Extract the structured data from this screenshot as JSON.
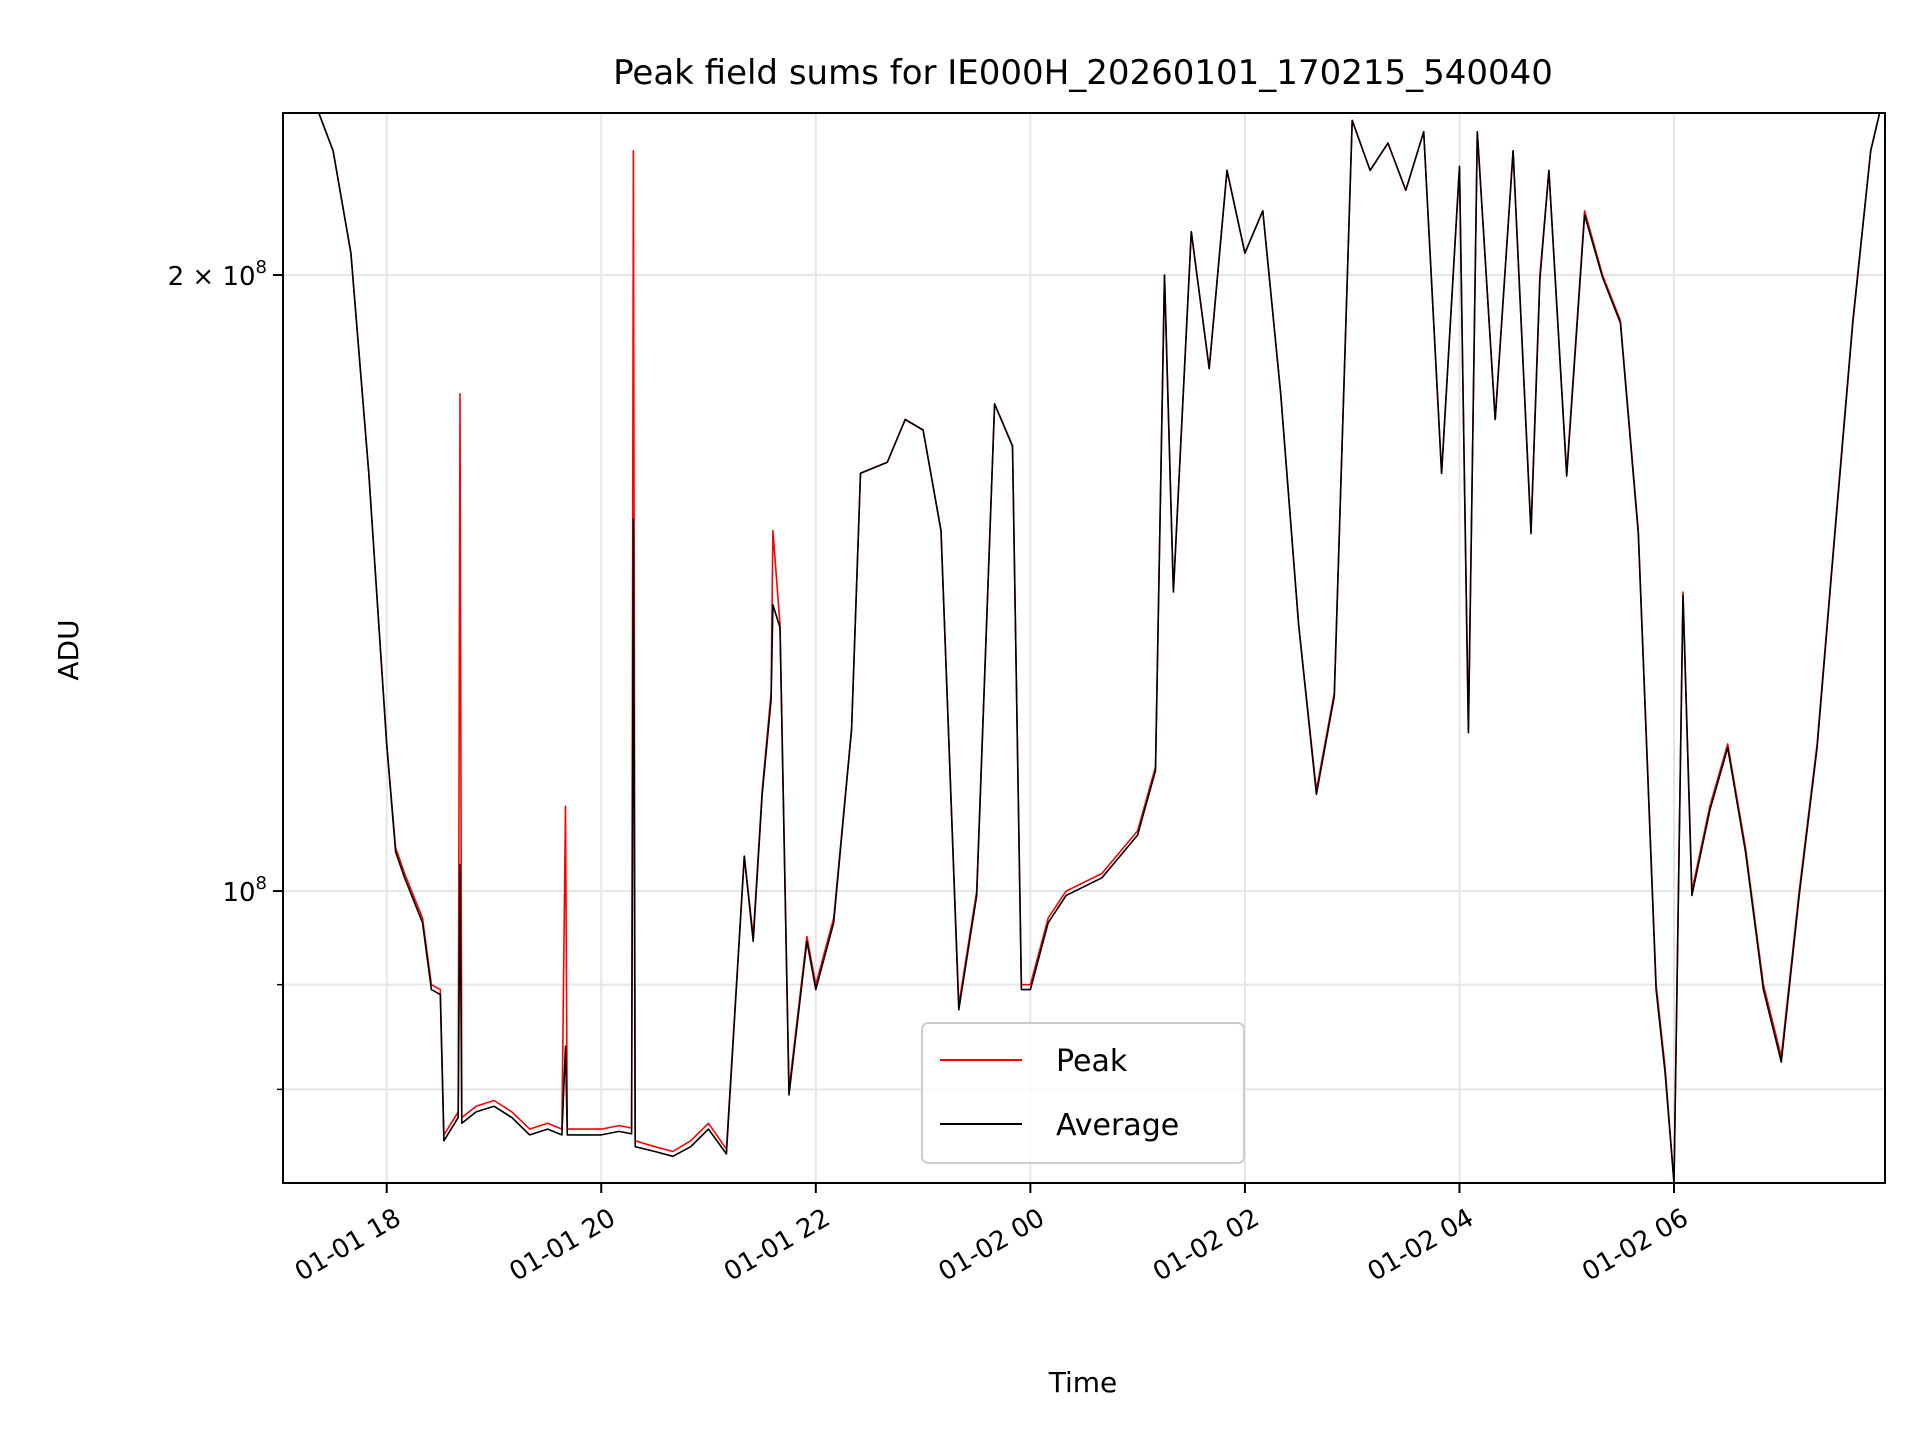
{
  "chart_data": {
    "type": "line",
    "title": "Peak field sums for IE000H_20260101_170215_540040",
    "xlabel": "Time",
    "ylabel": "ADU",
    "xlim": [
      "2026-01-01 17:02",
      "2026-01-02 07:58"
    ],
    "ylim": [
      72000000,
      240000000
    ],
    "yscale": "log",
    "grid": true,
    "legend_position": "lower-center",
    "x_ticks": [
      {
        "value": "2026-01-01 18:00",
        "label": "01-01 18"
      },
      {
        "value": "2026-01-01 20:00",
        "label": "01-01 20"
      },
      {
        "value": "2026-01-01 22:00",
        "label": "01-01 22"
      },
      {
        "value": "2026-01-02 00:00",
        "label": "01-02 00"
      },
      {
        "value": "2026-01-02 02:00",
        "label": "01-02 02"
      },
      {
        "value": "2026-01-02 04:00",
        "label": "01-02 04"
      },
      {
        "value": "2026-01-02 06:00",
        "label": "01-02 06"
      }
    ],
    "y_major_ticks": [
      {
        "value": 100000000,
        "base": "10",
        "exp": "8",
        "coef": ""
      },
      {
        "value": 200000000,
        "base": "10",
        "exp": "8",
        "coef": "2"
      }
    ],
    "y_minor_ticks": [
      80000000,
      90000000
    ],
    "series": [
      {
        "name": "Peak",
        "color": "#ff0000",
        "points": [
          [
            "2026-01-01 17:22",
            240000000
          ],
          [
            "2026-01-01 17:30",
            230000000
          ],
          [
            "2026-01-01 17:40",
            205000000
          ],
          [
            "2026-01-01 17:50",
            160000000
          ],
          [
            "2026-01-01 18:00",
            118000000
          ],
          [
            "2026-01-01 18:05",
            105000000
          ],
          [
            "2026-01-01 18:10",
            102000000
          ],
          [
            "2026-01-01 18:20",
            97000000
          ],
          [
            "2026-01-01 18:25",
            90000000
          ],
          [
            "2026-01-01 18:30",
            89500000
          ],
          [
            "2026-01-01 18:32",
            76000000
          ],
          [
            "2026-01-01 18:40",
            78000000
          ],
          [
            "2026-01-01 18:41",
            175000000
          ],
          [
            "2026-01-01 18:42",
            77500000
          ],
          [
            "2026-01-01 18:50",
            78500000
          ],
          [
            "2026-01-01 19:00",
            79000000
          ],
          [
            "2026-01-01 19:10",
            78000000
          ],
          [
            "2026-01-01 19:20",
            76500000
          ],
          [
            "2026-01-01 19:30",
            77000000
          ],
          [
            "2026-01-01 19:38",
            76500000
          ],
          [
            "2026-01-01 19:40",
            110000000
          ],
          [
            "2026-01-01 19:41",
            76500000
          ],
          [
            "2026-01-01 19:50",
            76500000
          ],
          [
            "2026-01-01 19:58",
            76500000
          ],
          [
            "2026-01-01 20:00",
            76500000
          ],
          [
            "2026-01-01 20:10",
            76800000
          ],
          [
            "2026-01-01 20:17",
            76600000
          ],
          [
            "2026-01-01 20:18",
            230000000
          ],
          [
            "2026-01-01 20:19",
            75500000
          ],
          [
            "2026-01-01 20:30",
            75000000
          ],
          [
            "2026-01-01 20:40",
            74600000
          ],
          [
            "2026-01-01 20:50",
            75500000
          ],
          [
            "2026-01-01 21:00",
            77000000
          ],
          [
            "2026-01-01 21:10",
            74800000
          ],
          [
            "2026-01-01 21:20",
            104000000
          ],
          [
            "2026-01-01 21:25",
            95000000
          ],
          [
            "2026-01-01 21:30",
            112000000
          ],
          [
            "2026-01-01 21:35",
            125000000
          ],
          [
            "2026-01-01 21:36",
            150000000
          ],
          [
            "2026-01-01 21:40",
            135000000
          ],
          [
            "2026-01-01 21:45",
            80000000
          ],
          [
            "2026-01-01 21:55",
            95000000
          ],
          [
            "2026-01-01 22:00",
            90000000
          ],
          [
            "2026-01-01 22:10",
            97000000
          ],
          [
            "2026-01-01 22:20",
            120000000
          ],
          [
            "2026-01-01 22:25",
            160000000
          ],
          [
            "2026-01-01 22:40",
            162000000
          ],
          [
            "2026-01-01 22:50",
            170000000
          ],
          [
            "2026-01-01 23:00",
            168000000
          ],
          [
            "2026-01-01 23:10",
            150000000
          ],
          [
            "2026-01-01 23:20",
            88000000
          ],
          [
            "2026-01-01 23:30",
            100000000
          ],
          [
            "2026-01-01 23:40",
            173000000
          ],
          [
            "2026-01-01 23:50",
            165000000
          ],
          [
            "2026-01-01 23:55",
            90000000
          ],
          [
            "2026-01-02 00:00",
            90000000
          ],
          [
            "2026-01-02 00:10",
            97000000
          ],
          [
            "2026-01-02 00:20",
            100000000
          ],
          [
            "2026-01-02 00:40",
            102000000
          ],
          [
            "2026-01-02 01:00",
            107000000
          ],
          [
            "2026-01-02 01:10",
            115000000
          ],
          [
            "2026-01-02 01:15",
            200000000
          ],
          [
            "2026-01-02 01:20",
            140000000
          ],
          [
            "2026-01-02 01:30",
            210000000
          ],
          [
            "2026-01-02 01:40",
            180000000
          ],
          [
            "2026-01-02 01:50",
            225000000
          ],
          [
            "2026-01-02 02:00",
            205000000
          ],
          [
            "2026-01-02 02:10",
            215000000
          ],
          [
            "2026-01-02 02:20",
            175000000
          ],
          [
            "2026-01-02 02:30",
            135000000
          ],
          [
            "2026-01-02 02:40",
            112000000
          ],
          [
            "2026-01-02 02:50",
            125000000
          ],
          [
            "2026-01-02 03:00",
            238000000
          ],
          [
            "2026-01-02 03:10",
            225000000
          ],
          [
            "2026-01-02 03:20",
            232000000
          ],
          [
            "2026-01-02 03:30",
            220000000
          ],
          [
            "2026-01-02 03:40",
            235000000
          ],
          [
            "2026-01-02 03:50",
            160000000
          ],
          [
            "2026-01-02 04:00",
            226000000
          ],
          [
            "2026-01-02 04:05",
            120000000
          ],
          [
            "2026-01-02 04:10",
            235000000
          ],
          [
            "2026-01-02 04:20",
            170000000
          ],
          [
            "2026-01-02 04:30",
            230000000
          ],
          [
            "2026-01-02 04:40",
            150000000
          ],
          [
            "2026-01-02 04:45",
            200000000
          ],
          [
            "2026-01-02 04:50",
            225000000
          ],
          [
            "2026-01-02 05:00",
            160000000
          ],
          [
            "2026-01-02 05:10",
            215000000
          ],
          [
            "2026-01-02 05:20",
            200000000
          ],
          [
            "2026-01-02 05:30",
            190000000
          ],
          [
            "2026-01-02 05:40",
            150000000
          ],
          [
            "2026-01-02 05:50",
            90000000
          ],
          [
            "2026-01-02 05:55",
            82000000
          ],
          [
            "2026-01-02 06:00",
            72000000
          ],
          [
            "2026-01-02 06:05",
            140000000
          ],
          [
            "2026-01-02 06:10",
            100000000
          ],
          [
            "2026-01-02 06:20",
            110000000
          ],
          [
            "2026-01-02 06:30",
            118000000
          ],
          [
            "2026-01-02 06:40",
            105000000
          ],
          [
            "2026-01-02 06:50",
            90000000
          ],
          [
            "2026-01-02 07:00",
            83000000
          ],
          [
            "2026-01-02 07:10",
            100000000
          ],
          [
            "2026-01-02 07:20",
            118000000
          ],
          [
            "2026-01-02 07:30",
            150000000
          ],
          [
            "2026-01-02 07:40",
            190000000
          ],
          [
            "2026-01-02 07:50",
            230000000
          ],
          [
            "2026-01-02 07:55",
            240000000
          ]
        ]
      },
      {
        "name": "Average",
        "color": "#000000",
        "points": [
          [
            "2026-01-01 17:22",
            240000000
          ],
          [
            "2026-01-01 17:30",
            230000000
          ],
          [
            "2026-01-01 17:40",
            205000000
          ],
          [
            "2026-01-01 17:50",
            160000000
          ],
          [
            "2026-01-01 18:00",
            118000000
          ],
          [
            "2026-01-01 18:05",
            104500000
          ],
          [
            "2026-01-01 18:10",
            101500000
          ],
          [
            "2026-01-01 18:20",
            96500000
          ],
          [
            "2026-01-01 18:25",
            89500000
          ],
          [
            "2026-01-01 18:30",
            89000000
          ],
          [
            "2026-01-01 18:32",
            75500000
          ],
          [
            "2026-01-01 18:40",
            77500000
          ],
          [
            "2026-01-01 18:41",
            103000000
          ],
          [
            "2026-01-01 18:42",
            77000000
          ],
          [
            "2026-01-01 18:50",
            78000000
          ],
          [
            "2026-01-01 19:00",
            78500000
          ],
          [
            "2026-01-01 19:10",
            77500000
          ],
          [
            "2026-01-01 19:20",
            76000000
          ],
          [
            "2026-01-01 19:30",
            76500000
          ],
          [
            "2026-01-01 19:38",
            76000000
          ],
          [
            "2026-01-01 19:40",
            84000000
          ],
          [
            "2026-01-01 19:41",
            76000000
          ],
          [
            "2026-01-01 19:50",
            76000000
          ],
          [
            "2026-01-01 19:58",
            76000000
          ],
          [
            "2026-01-01 20:00",
            76000000
          ],
          [
            "2026-01-01 20:10",
            76300000
          ],
          [
            "2026-01-01 20:17",
            76100000
          ],
          [
            "2026-01-01 20:18",
            152000000
          ],
          [
            "2026-01-01 20:19",
            75000000
          ],
          [
            "2026-01-01 20:30",
            74600000
          ],
          [
            "2026-01-01 20:40",
            74200000
          ],
          [
            "2026-01-01 20:50",
            75000000
          ],
          [
            "2026-01-01 21:00",
            76500000
          ],
          [
            "2026-01-01 21:10",
            74400000
          ],
          [
            "2026-01-01 21:20",
            104000000
          ],
          [
            "2026-01-01 21:25",
            94500000
          ],
          [
            "2026-01-01 21:30",
            111500000
          ],
          [
            "2026-01-01 21:35",
            124000000
          ],
          [
            "2026-01-01 21:36",
            138000000
          ],
          [
            "2026-01-01 21:40",
            134500000
          ],
          [
            "2026-01-01 21:45",
            79500000
          ],
          [
            "2026-01-01 21:55",
            94500000
          ],
          [
            "2026-01-01 22:00",
            89500000
          ],
          [
            "2026-01-01 22:10",
            96500000
          ],
          [
            "2026-01-01 22:20",
            120000000
          ],
          [
            "2026-01-01 22:25",
            160000000
          ],
          [
            "2026-01-01 22:40",
            162000000
          ],
          [
            "2026-01-01 22:50",
            170000000
          ],
          [
            "2026-01-01 23:00",
            168000000
          ],
          [
            "2026-01-01 23:10",
            150000000
          ],
          [
            "2026-01-01 23:20",
            87500000
          ],
          [
            "2026-01-01 23:30",
            99500000
          ],
          [
            "2026-01-01 23:40",
            173000000
          ],
          [
            "2026-01-01 23:50",
            165000000
          ],
          [
            "2026-01-01 23:55",
            89500000
          ],
          [
            "2026-01-02 00:00",
            89500000
          ],
          [
            "2026-01-02 00:10",
            96500000
          ],
          [
            "2026-01-02 00:20",
            99500000
          ],
          [
            "2026-01-02 00:40",
            101500000
          ],
          [
            "2026-01-02 01:00",
            106500000
          ],
          [
            "2026-01-02 01:10",
            114500000
          ],
          [
            "2026-01-02 01:15",
            200000000
          ],
          [
            "2026-01-02 01:20",
            140000000
          ],
          [
            "2026-01-02 01:30",
            210000000
          ],
          [
            "2026-01-02 01:40",
            180000000
          ],
          [
            "2026-01-02 01:50",
            225000000
          ],
          [
            "2026-01-02 02:00",
            205000000
          ],
          [
            "2026-01-02 02:10",
            215000000
          ],
          [
            "2026-01-02 02:20",
            175000000
          ],
          [
            "2026-01-02 02:30",
            135000000
          ],
          [
            "2026-01-02 02:40",
            111500000
          ],
          [
            "2026-01-02 02:50",
            124500000
          ],
          [
            "2026-01-02 03:00",
            238000000
          ],
          [
            "2026-01-02 03:10",
            225000000
          ],
          [
            "2026-01-02 03:20",
            232000000
          ],
          [
            "2026-01-02 03:30",
            220000000
          ],
          [
            "2026-01-02 03:40",
            235000000
          ],
          [
            "2026-01-02 03:50",
            160000000
          ],
          [
            "2026-01-02 04:00",
            226000000
          ],
          [
            "2026-01-02 04:05",
            119500000
          ],
          [
            "2026-01-02 04:10",
            235000000
          ],
          [
            "2026-01-02 04:20",
            170000000
          ],
          [
            "2026-01-02 04:30",
            230000000
          ],
          [
            "2026-01-02 04:40",
            149500000
          ],
          [
            "2026-01-02 04:45",
            199000000
          ],
          [
            "2026-01-02 04:50",
            225000000
          ],
          [
            "2026-01-02 05:00",
            159500000
          ],
          [
            "2026-01-02 05:10",
            214000000
          ],
          [
            "2026-01-02 05:20",
            199500000
          ],
          [
            "2026-01-02 05:30",
            189500000
          ],
          [
            "2026-01-02 05:40",
            149500000
          ],
          [
            "2026-01-02 05:50",
            89500000
          ],
          [
            "2026-01-02 05:55",
            81500000
          ],
          [
            "2026-01-02 06:00",
            72000000
          ],
          [
            "2026-01-02 06:05",
            139500000
          ],
          [
            "2026-01-02 06:10",
            99500000
          ],
          [
            "2026-01-02 06:20",
            109500000
          ],
          [
            "2026-01-02 06:30",
            117500000
          ],
          [
            "2026-01-02 06:40",
            104500000
          ],
          [
            "2026-01-02 06:50",
            89500000
          ],
          [
            "2026-01-02 07:00",
            82500000
          ],
          [
            "2026-01-02 07:10",
            99500000
          ],
          [
            "2026-01-02 07:20",
            117500000
          ],
          [
            "2026-01-02 07:30",
            149500000
          ],
          [
            "2026-01-02 07:40",
            189500000
          ],
          [
            "2026-01-02 07:50",
            230000000
          ],
          [
            "2026-01-02 07:55",
            240000000
          ]
        ]
      }
    ]
  }
}
